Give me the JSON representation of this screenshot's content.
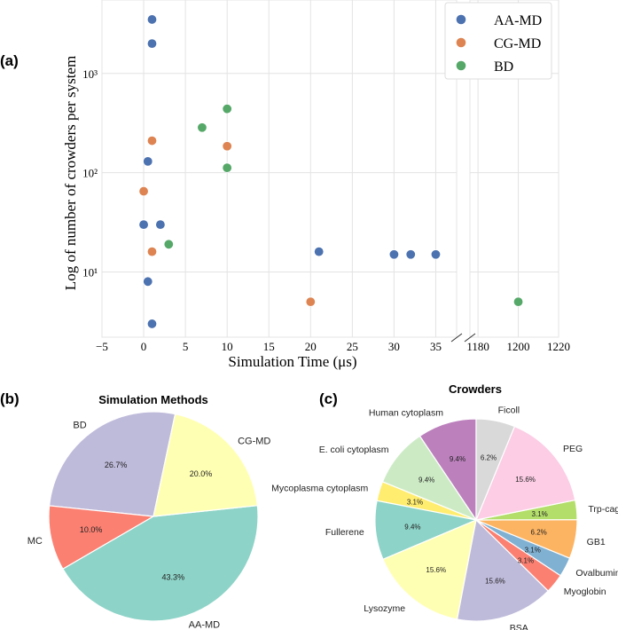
{
  "chart_data": [
    {
      "panel_label": "(a)",
      "type": "scatter",
      "title": "",
      "xlabel": "Simulation Time (μs)",
      "ylabel": "Log of number of crowders per system",
      "yscale": "log",
      "ylim": [
        2.2,
        5500
      ],
      "xlim_left": [
        -5,
        37.5
      ],
      "xlim_right": [
        1176,
        1220
      ],
      "axis_break": true,
      "grid": true,
      "legend_position": "top-right",
      "x_ticks_left": [
        "−5",
        "0",
        "5",
        "10",
        "15",
        "20",
        "25",
        "30",
        "35"
      ],
      "x_ticks_right": [
        "1180",
        "1200",
        "1220"
      ],
      "y_ticks": [
        "10¹",
        "10²",
        "10³"
      ],
      "series": [
        {
          "name": "AA-MD",
          "color": "#4c72b0",
          "points": [
            [
              1,
              3500
            ],
            [
              1,
              2000
            ],
            [
              0.5,
              130
            ],
            [
              0,
              30
            ],
            [
              2,
              30
            ],
            [
              0.5,
              8
            ],
            [
              1,
              3
            ],
            [
              21,
              16
            ],
            [
              30,
              15
            ],
            [
              32,
              15
            ],
            [
              35,
              15
            ]
          ]
        },
        {
          "name": "CG-MD",
          "color": "#dd8452",
          "points": [
            [
              1,
              210
            ],
            [
              10,
              185
            ],
            [
              0,
              65
            ],
            [
              1,
              16
            ],
            [
              20,
              5
            ]
          ]
        },
        {
          "name": "BD",
          "color": "#55a868",
          "points": [
            [
              10,
              440
            ],
            [
              7,
              285
            ],
            [
              10,
              112
            ],
            [
              3,
              19
            ],
            [
              1200,
              5
            ]
          ]
        }
      ]
    },
    {
      "panel_label": "(b)",
      "type": "pie",
      "title": "Simulation Methods",
      "slices": [
        {
          "label": "BD",
          "pct": "26.7%",
          "value": 26.7,
          "color": "#bebada"
        },
        {
          "label": "MC",
          "pct": "10.0%",
          "value": 10.0,
          "color": "#fb8072"
        },
        {
          "label": "AA-MD",
          "pct": "43.3%",
          "value": 43.3,
          "color": "#8dd3c7"
        },
        {
          "label": "CG-MD",
          "pct": "20.0%",
          "value": 20.0,
          "color": "#ffffb3"
        }
      ]
    },
    {
      "panel_label": "(c)",
      "type": "pie",
      "title": "Crowders",
      "slices": [
        {
          "label": "Human cytoplasm",
          "pct": "9.4%",
          "value": 9.4,
          "color": "#bc80bd"
        },
        {
          "label": "E. coli cytoplasm",
          "pct": "9.4%",
          "value": 9.4,
          "color": "#ccebc5"
        },
        {
          "label": "Mycoplasma cytoplasm",
          "pct": "3.1%",
          "value": 3.1,
          "color": "#ffed6f"
        },
        {
          "label": "Fullerene",
          "pct": "9.4%",
          "value": 9.4,
          "color": "#8dd3c7"
        },
        {
          "label": "Lysozyme",
          "pct": "15.6%",
          "value": 15.6,
          "color": "#ffffb3"
        },
        {
          "label": "BSA",
          "pct": "15.6%",
          "value": 15.6,
          "color": "#bebada"
        },
        {
          "label": "Myoglobin",
          "pct": "3.1%",
          "value": 3.1,
          "color": "#fb8072"
        },
        {
          "label": "Ovalbumin",
          "pct": "3.1%",
          "value": 3.1,
          "color": "#80b1d3"
        },
        {
          "label": "GB1",
          "pct": "6.2%",
          "value": 6.2,
          "color": "#fdb462"
        },
        {
          "label": "Trp-cage",
          "pct": "3.1%",
          "value": 3.1,
          "color": "#b3de69"
        },
        {
          "label": "PEG",
          "pct": "15.6%",
          "value": 15.6,
          "color": "#fccde5"
        },
        {
          "label": "Ficoll",
          "pct": "6.2%",
          "value": 6.2,
          "color": "#d9d9d9"
        }
      ]
    }
  ]
}
